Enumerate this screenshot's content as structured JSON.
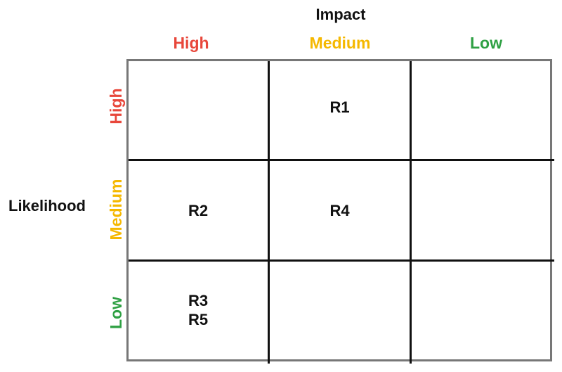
{
  "impact": {
    "title": "Impact",
    "levels": [
      {
        "label": "High",
        "color": "#e8473b"
      },
      {
        "label": "Medium",
        "color": "#f5b800"
      },
      {
        "label": "Low",
        "color": "#2ea043"
      }
    ]
  },
  "likelihood": {
    "title": "Likelihood",
    "levels": [
      {
        "label": "High",
        "color": "#e8473b"
      },
      {
        "label": "Medium",
        "color": "#f5b800"
      },
      {
        "label": "Low",
        "color": "#2ea043"
      }
    ]
  },
  "matrix": {
    "rows": [
      {
        "cells": [
          [],
          [
            "R1"
          ],
          []
        ]
      },
      {
        "cells": [
          [
            "R2"
          ],
          [
            "R4"
          ],
          []
        ]
      },
      {
        "cells": [
          [
            "R3",
            "R5"
          ],
          [],
          []
        ]
      }
    ]
  }
}
